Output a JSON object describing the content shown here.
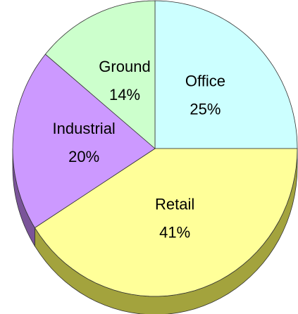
{
  "chart_data": {
    "type": "pie",
    "categories": [
      "Office",
      "Retail",
      "Industrial",
      "Ground"
    ],
    "values": [
      25,
      41,
      20,
      14
    ],
    "value_labels": [
      "25%",
      "41%",
      "20%",
      "14%"
    ],
    "colors": [
      "#ccffff",
      "#ffff99",
      "#cc99ff",
      "#ccffcc"
    ],
    "side_colors": [
      "#8fb3b3",
      "#a3a33d",
      "#7a5499",
      "#8fb38f"
    ],
    "start_angle": 0,
    "direction": "clockwise"
  }
}
